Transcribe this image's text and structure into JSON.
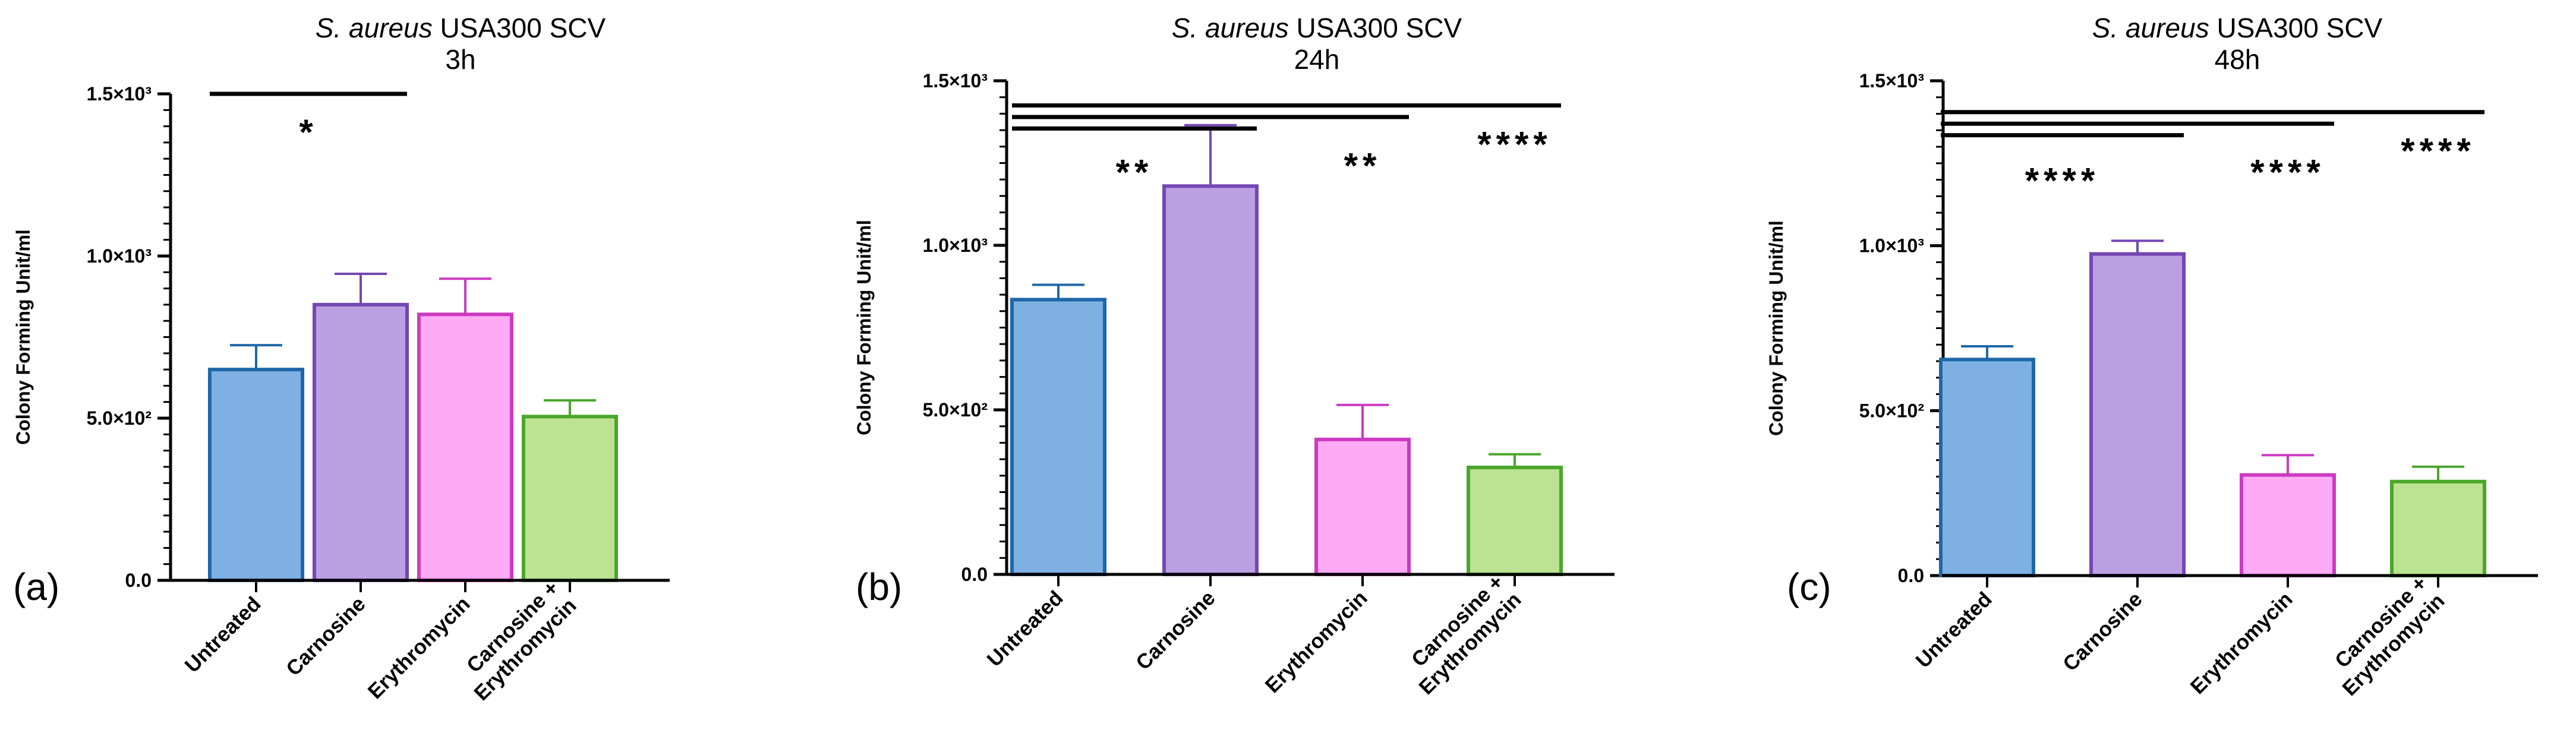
{
  "chart_data": [
    {
      "type": "bar",
      "panel_label": "(a)",
      "title_italic": "S. aureus",
      "title_rest": " USA300 SCV",
      "title_line2": "3h",
      "ylabel": "Colony Forming  Unit/ml",
      "ylim": [
        0,
        1500
      ],
      "yticks": [
        {
          "value": 0,
          "label": "0.0"
        },
        {
          "value": 500,
          "label": "5.0×10²"
        },
        {
          "value": 1000,
          "label": "1.0×10³"
        },
        {
          "value": 1500,
          "label": "1.5×10³"
        }
      ],
      "categories": [
        "Untreated",
        "Carnosine",
        "Erythromycin",
        "Carnosine +|Erythromycin"
      ],
      "values": [
        650,
        850,
        820,
        505
      ],
      "errors": [
        75,
        95,
        110,
        50
      ],
      "significance": [
        {
          "from": 0,
          "to": 1,
          "bar_y": 1500,
          "label": "*",
          "label_y": 1385
        }
      ]
    },
    {
      "type": "bar",
      "panel_label": "(b)",
      "title_italic": "S. aureus",
      "title_rest": " USA300 SCV",
      "title_line2": "24h",
      "ylabel": "Colony Forming  Unit/ml",
      "ylim": [
        0,
        1500
      ],
      "yticks": [
        {
          "value": 0,
          "label": "0.0"
        },
        {
          "value": 500,
          "label": "5.0×10²"
        },
        {
          "value": 1000,
          "label": "1.0×10³"
        },
        {
          "value": 1500,
          "label": "1.5×10³"
        }
      ],
      "categories": [
        "Untreated",
        "Carnosine",
        "Erythromycin",
        "Carnosine +|Erythromycin"
      ],
      "values": [
        835,
        1180,
        410,
        325
      ],
      "errors": [
        45,
        185,
        105,
        40
      ],
      "significance": [
        {
          "from": 0,
          "to": 1,
          "bar_y": 1355,
          "label": "**",
          "label_y": 1225
        },
        {
          "from": 0,
          "to": 2,
          "bar_y": 1390,
          "label": "**",
          "label_y": 1245
        },
        {
          "from": 0,
          "to": 3,
          "bar_y": 1425,
          "label": "****",
          "label_y": 1310
        }
      ]
    },
    {
      "type": "bar",
      "panel_label": "(c)",
      "title_italic": "S. aureus",
      "title_rest": " USA300 SCV",
      "title_line2": "48h",
      "ylabel": "Colony Forming  Unit/ml",
      "ylim": [
        0,
        1500
      ],
      "yticks": [
        {
          "value": 0,
          "label": "0.0"
        },
        {
          "value": 500,
          "label": "5.0×10²"
        },
        {
          "value": 1000,
          "label": "1.0×10³"
        },
        {
          "value": 1500,
          "label": "1.5×10³"
        }
      ],
      "categories": [
        "Untreated",
        "Carnosine",
        "Erythromycin",
        "Carnosine +|Erythromycin"
      ],
      "values": [
        655,
        975,
        305,
        285
      ],
      "errors": [
        40,
        40,
        60,
        45
      ],
      "significance": [
        {
          "from": 0,
          "to": 1,
          "bar_y": 1335,
          "label": "****",
          "label_y": 1200
        },
        {
          "from": 0,
          "to": 2,
          "bar_y": 1370,
          "label": "****",
          "label_y": 1225
        },
        {
          "from": 0,
          "to": 3,
          "bar_y": 1405,
          "label": "****",
          "label_y": 1290
        }
      ]
    }
  ],
  "colors": {
    "fills": [
      "#7eb1e2",
      "#bb9fe3",
      "#ffaaf5",
      "#bbe391"
    ],
    "strokes": [
      "#1f67a8",
      "#7546b4",
      "#cc3ac1",
      "#4ba62c"
    ],
    "axis": "#000000"
  }
}
